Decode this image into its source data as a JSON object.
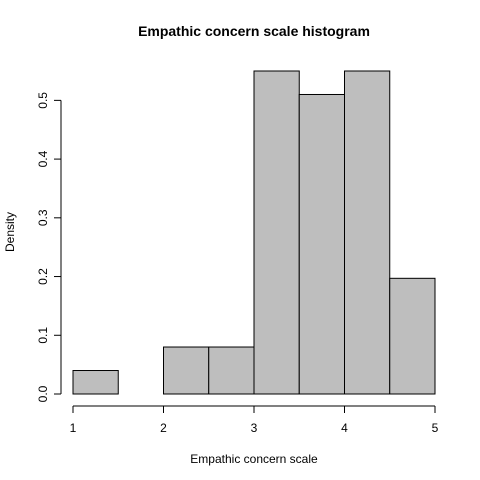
{
  "chart_data": {
    "type": "bar",
    "title": "Empathic concern scale histogram",
    "xlabel": "Empathic concern scale",
    "ylabel": "Density",
    "bins": [
      {
        "from": 1.0,
        "to": 1.5,
        "density": 0.04
      },
      {
        "from": 1.5,
        "to": 2.0,
        "density": 0.0
      },
      {
        "from": 2.0,
        "to": 2.5,
        "density": 0.08
      },
      {
        "from": 2.5,
        "to": 3.0,
        "density": 0.08
      },
      {
        "from": 3.0,
        "to": 3.5,
        "density": 0.55
      },
      {
        "from": 3.5,
        "to": 4.0,
        "density": 0.51
      },
      {
        "from": 4.0,
        "to": 4.5,
        "density": 0.55
      },
      {
        "from": 4.5,
        "to": 5.0,
        "density": 0.197
      }
    ],
    "xlim": [
      1,
      5
    ],
    "ylim": [
      0,
      0.55
    ],
    "x_ticks": [
      "1",
      "2",
      "3",
      "4",
      "5"
    ],
    "y_ticks": [
      "0.0",
      "0.1",
      "0.2",
      "0.3",
      "0.4",
      "0.5"
    ],
    "bar_fill": "#bebebe",
    "grid": false
  }
}
